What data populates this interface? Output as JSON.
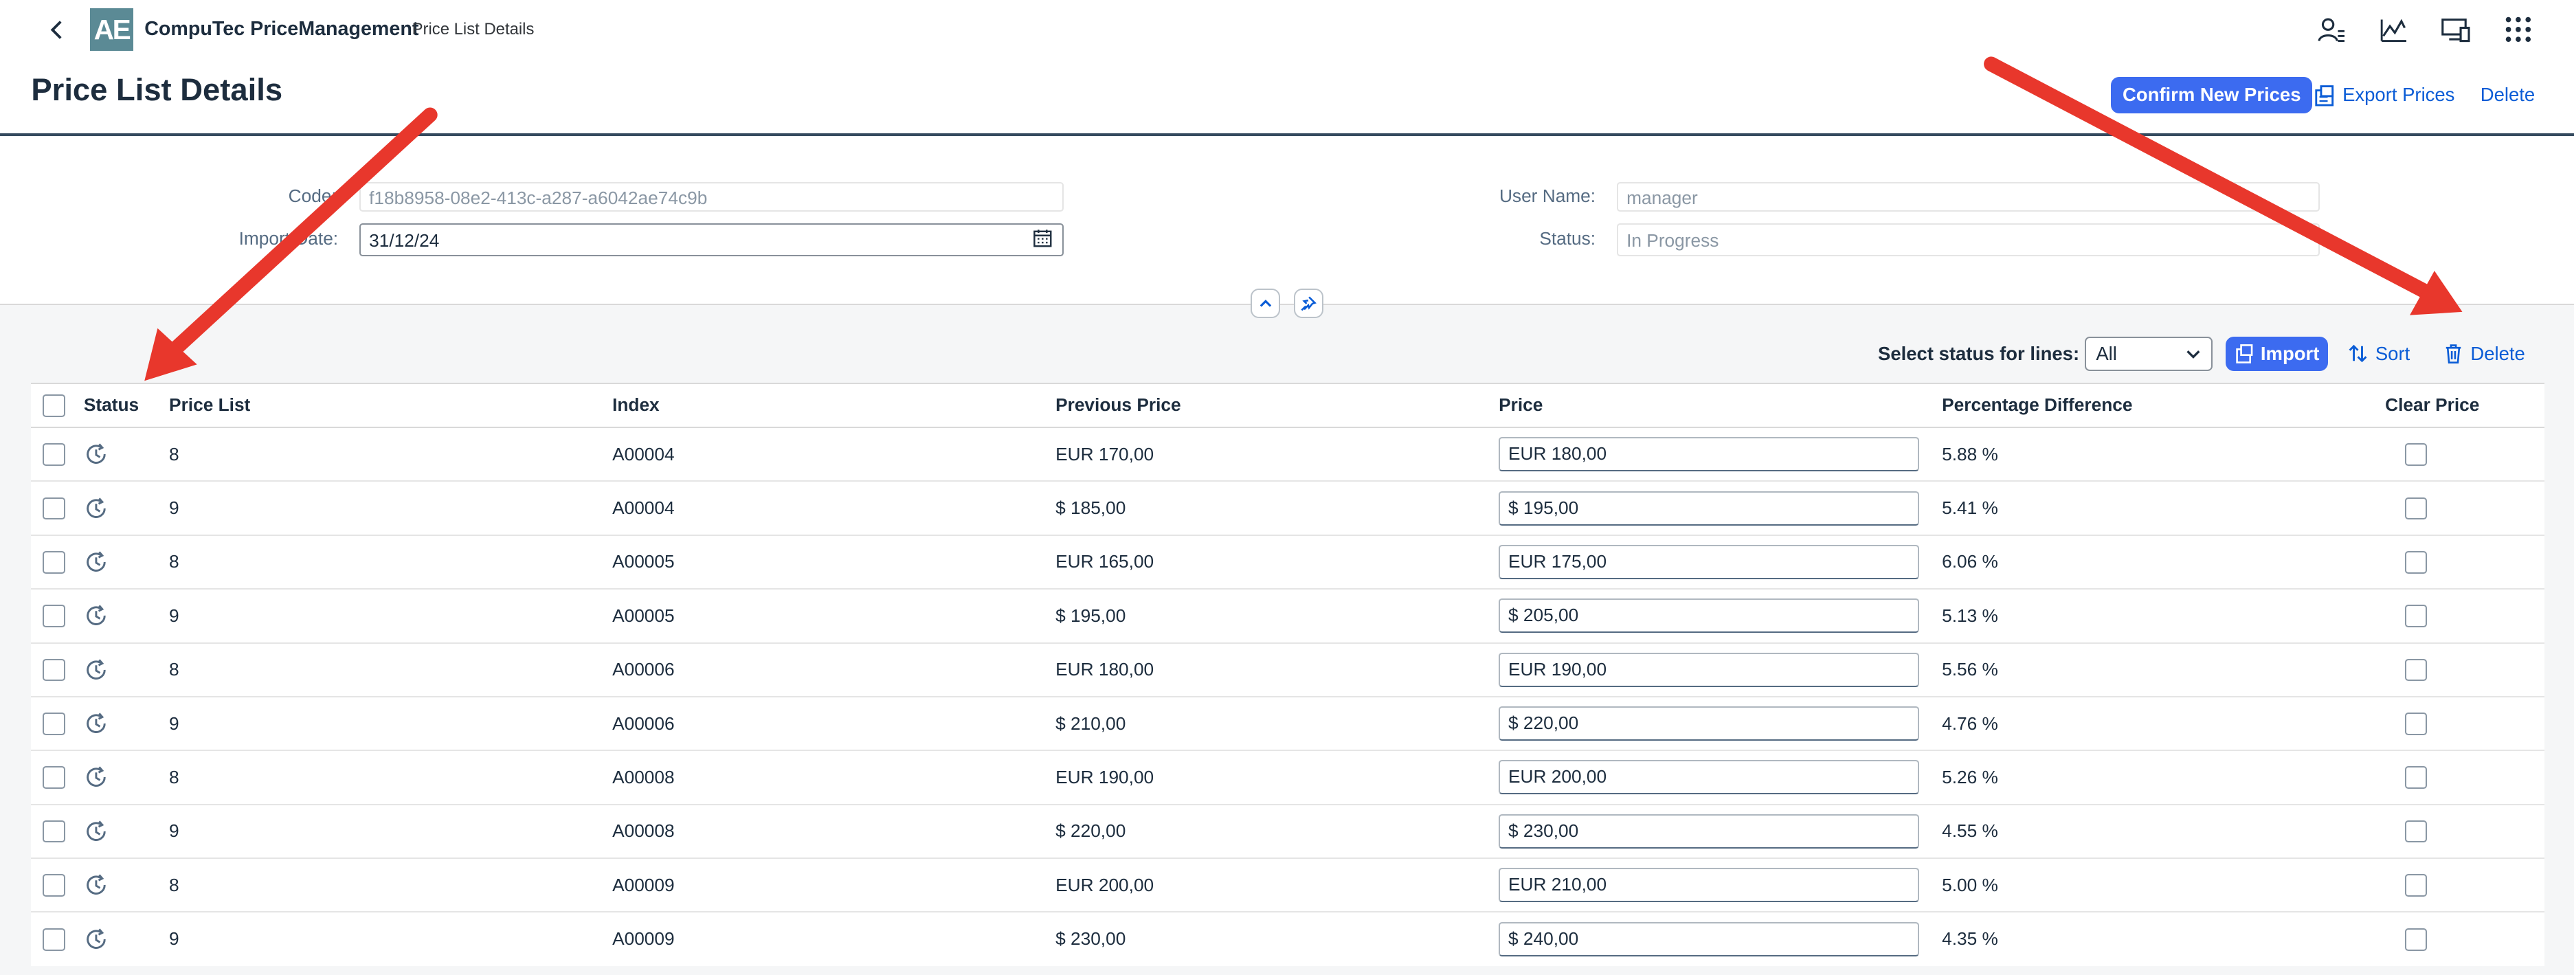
{
  "shell": {
    "logo_text": "AE",
    "app_title": "CompuTec PriceManagement",
    "app_subtitle": "Price List Details",
    "icons": [
      "user-settings-icon",
      "analytics-icon",
      "device-icon",
      "grid-menu-icon"
    ]
  },
  "header": {
    "title": "Price List Details",
    "confirm_label": "Confirm New Prices",
    "export_label": "Export Prices",
    "delete_label": "Delete"
  },
  "form": {
    "code_label": "Code:",
    "code_value": "f18b8958-08e2-413c-a287-a6042ae74c9b",
    "import_date_label": "Import Date:",
    "import_date_value": "31/12/24",
    "user_name_label": "User Name:",
    "user_name_value": "manager",
    "status_label": "Status:",
    "status_value": "In Progress"
  },
  "toolbar": {
    "select_label": "Select status for lines:",
    "select_value": "All",
    "import_label": "Import",
    "sort_label": "Sort",
    "delete_label": "Delete"
  },
  "table": {
    "columns": [
      "Status",
      "Price List",
      "Index",
      "Previous Price",
      "Price",
      "Percentage Difference",
      "Clear Price"
    ],
    "rows": [
      {
        "price_list": "8",
        "index": "A00004",
        "previous": "EUR 170,00",
        "price": "EUR 180,00",
        "pct": "5.88 %"
      },
      {
        "price_list": "9",
        "index": "A00004",
        "previous": "$ 185,00",
        "price": "$ 195,00",
        "pct": "5.41 %"
      },
      {
        "price_list": "8",
        "index": "A00005",
        "previous": "EUR 165,00",
        "price": "EUR 175,00",
        "pct": "6.06 %"
      },
      {
        "price_list": "9",
        "index": "A00005",
        "previous": "$ 195,00",
        "price": "$ 205,00",
        "pct": "5.13 %"
      },
      {
        "price_list": "8",
        "index": "A00006",
        "previous": "EUR 180,00",
        "price": "EUR 190,00",
        "pct": "5.56 %"
      },
      {
        "price_list": "9",
        "index": "A00006",
        "previous": "$ 210,00",
        "price": "$ 220,00",
        "pct": "4.76 %"
      },
      {
        "price_list": "8",
        "index": "A00008",
        "previous": "EUR 190,00",
        "price": "EUR 200,00",
        "pct": "5.26 %"
      },
      {
        "price_list": "9",
        "index": "A00008",
        "previous": "$ 220,00",
        "price": "$ 230,00",
        "pct": "4.55 %"
      },
      {
        "price_list": "8",
        "index": "A00009",
        "previous": "EUR 200,00",
        "price": "EUR 210,00",
        "pct": "5.00 %"
      },
      {
        "price_list": "9",
        "index": "A00009",
        "previous": "$ 230,00",
        "price": "$ 240,00",
        "pct": "4.35 %"
      }
    ]
  },
  "colors": {
    "accent": "#3c6bf0",
    "link": "#0a5cd6",
    "annotation_arrow": "#e8372c"
  }
}
